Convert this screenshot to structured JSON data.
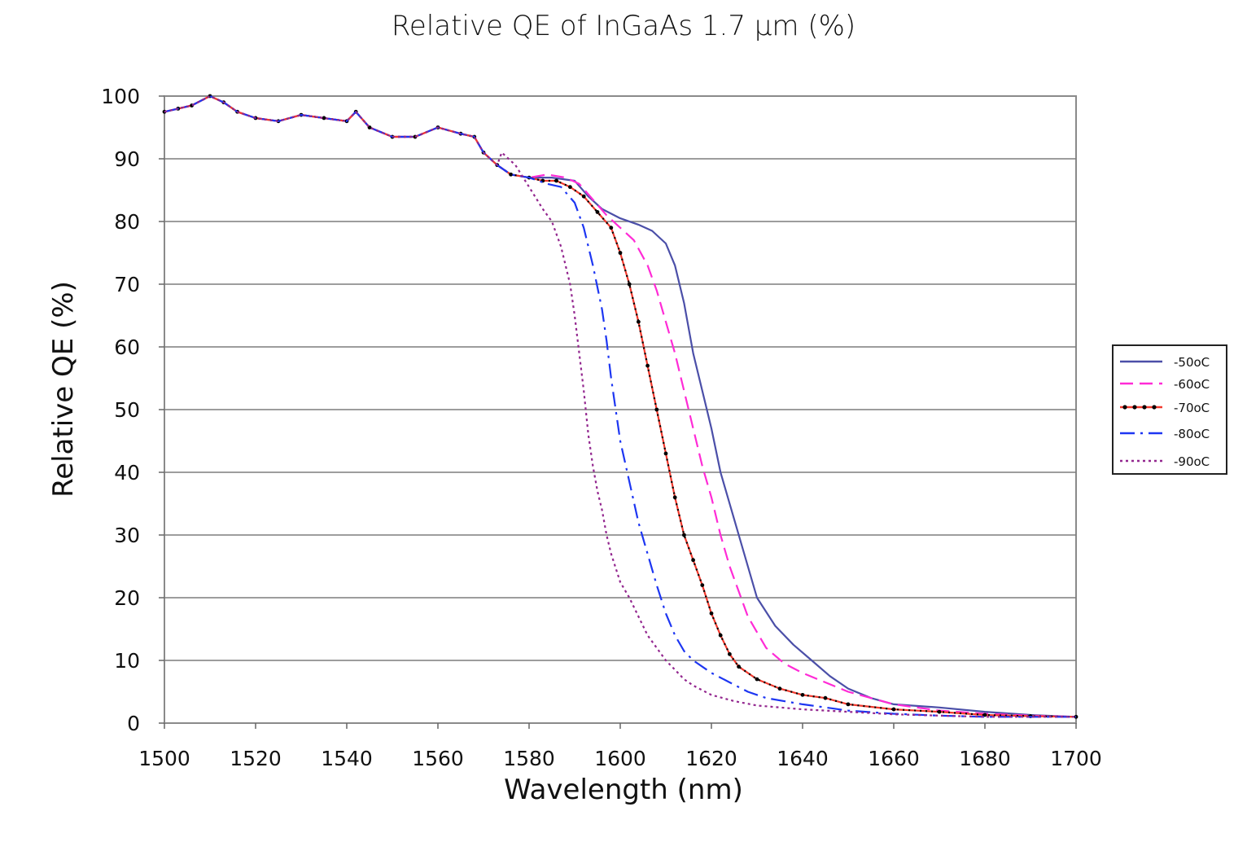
{
  "chart_data": {
    "type": "line",
    "title": "Relative QE of InGaAs 1.7 µm (%)",
    "xlabel": "Wavelength (nm)",
    "ylabel": "Relative QE (%)",
    "xlim": [
      1500,
      1700
    ],
    "ylim": [
      0,
      100
    ],
    "x_ticks": [
      "1500",
      "1520",
      "1540",
      "1560",
      "1580",
      "1600",
      "1620",
      "1640",
      "1660",
      "1680",
      "1700"
    ],
    "y_ticks": [
      "0",
      "10",
      "20",
      "30",
      "40",
      "50",
      "60",
      "70",
      "80",
      "90",
      "100"
    ],
    "grid": "horizontal",
    "legend_position": "right",
    "base_points": {
      "x": [
        1500,
        1503,
        1506,
        1510,
        1513,
        1516,
        1520,
        1525,
        1530,
        1535,
        1540,
        1542,
        1545,
        1550,
        1555,
        1560,
        1565,
        1568,
        1570,
        1573,
        1576,
        1580
      ],
      "y": [
        97.5,
        98,
        98.5,
        100,
        99,
        97.5,
        96.5,
        96,
        97,
        96.5,
        96,
        97.5,
        95,
        93.5,
        93.5,
        95,
        94,
        93.5,
        91,
        89,
        87.5,
        87
      ]
    },
    "series": [
      {
        "name": "-50oC",
        "color": "#4b4fa8",
        "style": "solid",
        "x": [
          1580,
          1585,
          1590,
          1593,
          1596,
          1600,
          1604,
          1607,
          1610,
          1612,
          1614,
          1616,
          1618,
          1620,
          1622,
          1624,
          1626,
          1628,
          1630,
          1634,
          1638,
          1642,
          1646,
          1650,
          1655,
          1660,
          1670,
          1680,
          1690,
          1700
        ],
        "y": [
          87,
          87,
          86.5,
          84,
          82,
          80.5,
          79.5,
          78.5,
          76.5,
          73,
          67,
          59,
          53,
          47,
          40,
          35,
          30,
          25,
          20,
          15.5,
          12.5,
          10,
          7.5,
          5.5,
          4,
          3,
          2.5,
          1.8,
          1.3,
          1
        ]
      },
      {
        "name": "-60oC",
        "color": "#ff2bd6",
        "style": "dashed",
        "x": [
          1580,
          1584,
          1588,
          1591,
          1594,
          1597,
          1600,
          1603,
          1606,
          1608,
          1610,
          1612,
          1614,
          1616,
          1618,
          1620,
          1622,
          1624,
          1628,
          1632,
          1636,
          1640,
          1645,
          1650,
          1655,
          1660,
          1670,
          1680,
          1690,
          1700
        ],
        "y": [
          87,
          87.5,
          87,
          86,
          83.5,
          81,
          79,
          77,
          73,
          69,
          64,
          59,
          53,
          47,
          41,
          36,
          30,
          25,
          17,
          12,
          9.5,
          8,
          6.5,
          5,
          4,
          3,
          2,
          1.5,
          1.2,
          1
        ]
      },
      {
        "name": "-70oC",
        "color": "#f23a2e",
        "style": "dotted-marker",
        "x": [
          1580,
          1583,
          1586,
          1589,
          1592,
          1595,
          1598,
          1600,
          1602,
          1604,
          1606,
          1608,
          1610,
          1612,
          1614,
          1616,
          1618,
          1620,
          1622,
          1624,
          1626,
          1630,
          1635,
          1640,
          1645,
          1650,
          1660,
          1670,
          1680,
          1690,
          1700
        ],
        "y": [
          87,
          86.5,
          86.5,
          85.5,
          84,
          81.5,
          79,
          75,
          70,
          64,
          57,
          50,
          43,
          36,
          30,
          26,
          22,
          17.5,
          14,
          11,
          9,
          7,
          5.5,
          4.5,
          4,
          3,
          2.2,
          1.8,
          1.3,
          1.1,
          1
        ]
      },
      {
        "name": "-80oC",
        "color": "#1d36f2",
        "style": "dash-dot",
        "x": [
          1580,
          1584,
          1587,
          1590,
          1592,
          1594,
          1596,
          1597,
          1598,
          1599,
          1600,
          1602,
          1604,
          1606,
          1608,
          1610,
          1612,
          1614,
          1616,
          1620,
          1624,
          1628,
          1632,
          1640,
          1650,
          1660,
          1670,
          1680,
          1690,
          1700
        ],
        "y": [
          87,
          86,
          85.5,
          83,
          79,
          73,
          66,
          61,
          55,
          50,
          45,
          38.5,
          32,
          27,
          22,
          17.5,
          14,
          11.5,
          10,
          8,
          6.5,
          5,
          4,
          3,
          2,
          1.5,
          1.2,
          1,
          1,
          1
        ]
      },
      {
        "name": "-90oC",
        "color": "#93278f",
        "style": "dotted",
        "x": [
          1574,
          1577,
          1580,
          1583,
          1585,
          1587,
          1589,
          1590,
          1591,
          1592,
          1593,
          1594,
          1595,
          1596,
          1597,
          1598,
          1600,
          1602,
          1604,
          1606,
          1608,
          1610,
          1612,
          1614,
          1616,
          1620,
          1625,
          1630,
          1640,
          1650,
          1660,
          1670,
          1680,
          1690,
          1700
        ],
        "y": [
          91,
          89,
          85.5,
          82,
          80,
          76,
          70,
          65,
          59,
          53,
          46,
          41,
          37,
          34,
          30,
          27,
          22.5,
          20,
          17,
          14,
          12,
          10,
          8.5,
          7,
          6,
          4.5,
          3.5,
          2.8,
          2.2,
          1.8,
          1.4,
          1.2,
          1,
          1,
          1
        ]
      }
    ]
  }
}
